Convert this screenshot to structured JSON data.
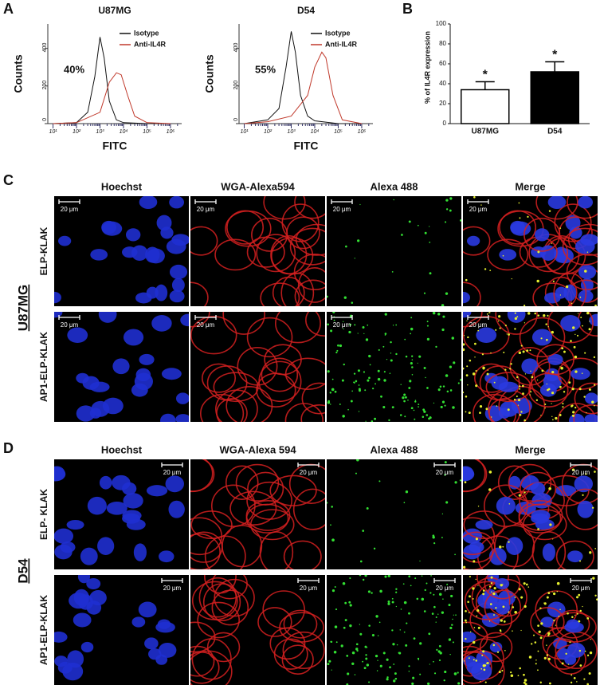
{
  "panel_labels": [
    "A",
    "B",
    "C",
    "D"
  ],
  "chart_data": [
    {
      "type": "line",
      "title": "U87MG",
      "x_label": "FITC",
      "y_label": "Counts",
      "annotation": "40%",
      "xscale": "log",
      "xlim": [
        6,
        3000000
      ],
      "ylim": [
        0,
        530
      ],
      "yticks": [
        0,
        200,
        400
      ],
      "xticks": [
        {
          "value": 10,
          "label": "10¹"
        },
        {
          "value": 100,
          "label": "10²"
        },
        {
          "value": 1000,
          "label": "10³"
        },
        {
          "value": 10000,
          "label": "10⁴"
        },
        {
          "value": 100000,
          "label": "10⁵"
        },
        {
          "value": 1000000,
          "label": "10⁶"
        }
      ],
      "legend": "upper right",
      "series": [
        {
          "name": "Isotype",
          "color": "#111111",
          "x": [
            10,
            100,
            300,
            600,
            1000,
            1500,
            2500,
            5000,
            10000,
            100000,
            1000000
          ],
          "values": [
            0,
            5,
            60,
            250,
            460,
            350,
            120,
            20,
            5,
            0,
            0
          ]
        },
        {
          "name": "Anti-IL4R",
          "color": "#c0392b",
          "x": [
            10,
            100,
            1000,
            2500,
            5000,
            8000,
            15000,
            30000,
            100000,
            1000000
          ],
          "values": [
            0,
            5,
            60,
            220,
            270,
            260,
            150,
            40,
            5,
            0
          ]
        }
      ]
    },
    {
      "type": "line",
      "title": "D54",
      "x_label": "FITC",
      "y_label": "Counts",
      "annotation": "55%",
      "xscale": "log",
      "xlim": [
        6,
        3000000
      ],
      "ylim": [
        0,
        530
      ],
      "yticks": [
        0,
        200,
        400
      ],
      "xticks": [
        {
          "value": 10,
          "label": "10¹"
        },
        {
          "value": 100,
          "label": "10²"
        },
        {
          "value": 1000,
          "label": "10³"
        },
        {
          "value": 10000,
          "label": "10⁴"
        },
        {
          "value": 100000,
          "label": "10⁵"
        },
        {
          "value": 1000000,
          "label": "10⁶"
        }
      ],
      "legend": "upper right",
      "series": [
        {
          "name": "Isotype",
          "color": "#111111",
          "x": [
            10,
            100,
            300,
            600,
            1000,
            1500,
            2500,
            5000,
            10000,
            100000,
            1000000
          ],
          "values": [
            0,
            20,
            80,
            300,
            490,
            380,
            150,
            40,
            15,
            0,
            0
          ]
        },
        {
          "name": "Anti-IL4R",
          "color": "#c0392b",
          "x": [
            10,
            100,
            1000,
            5000,
            10000,
            20000,
            30000,
            60000,
            150000,
            1000000
          ],
          "values": [
            0,
            10,
            40,
            150,
            300,
            380,
            350,
            150,
            20,
            0
          ]
        }
      ]
    },
    {
      "type": "bar",
      "y_label": "% of IL4R expression",
      "categories": [
        "U87MG",
        "D54"
      ],
      "values": [
        34,
        52
      ],
      "errors": [
        8,
        10
      ],
      "annotations": [
        "*",
        "*"
      ],
      "colors": [
        "#ffffff",
        "#000000"
      ],
      "ylim": [
        0,
        100
      ],
      "yticks": [
        0,
        20,
        40,
        60,
        80,
        100
      ]
    }
  ],
  "panel_c": {
    "cell_line": "U87MG",
    "columns": [
      "Hoechst",
      "WGA-Alexa594",
      "Alexa 488",
      "Merge"
    ],
    "rows": [
      "ELP-KLAK",
      "AP1-ELP-KLAK"
    ],
    "scale_bar": "20 μm"
  },
  "panel_d": {
    "cell_line": "D54",
    "columns": [
      "Hoechst",
      "WGA-Alexa 594",
      "Alexa 488",
      "Merge"
    ],
    "rows": [
      "ELP- KLAK",
      "AP1-ELP-KLAK"
    ],
    "scale_bar": "20 μm"
  }
}
